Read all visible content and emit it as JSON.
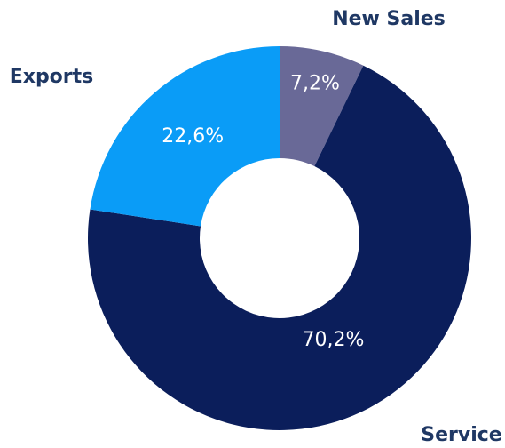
{
  "chart_data": {
    "type": "donut",
    "categories": [
      "New Sales",
      "Service",
      "Exports"
    ],
    "values": [
      7.2,
      70.2,
      22.6
    ],
    "value_labels": [
      "7,2%",
      "70,2%",
      "22,6%"
    ],
    "colors": [
      "#696997",
      "#0b1e5b",
      "#0a9cf7"
    ]
  }
}
